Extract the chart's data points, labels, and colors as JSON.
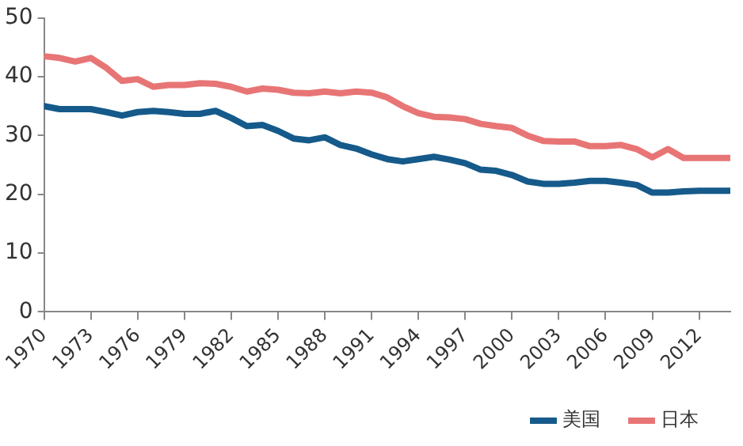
{
  "chart_data": {
    "type": "line",
    "x": [
      1970,
      1971,
      1972,
      1973,
      1974,
      1975,
      1976,
      1977,
      1978,
      1979,
      1980,
      1981,
      1982,
      1983,
      1984,
      1985,
      1986,
      1987,
      1988,
      1989,
      1990,
      1991,
      1992,
      1993,
      1994,
      1995,
      1996,
      1997,
      1998,
      1999,
      2000,
      2001,
      2002,
      2003,
      2004,
      2005,
      2006,
      2007,
      2008,
      2009,
      2010,
      2011,
      2012,
      2013,
      2014
    ],
    "series": [
      {
        "name": "美国",
        "color": "#155a8a",
        "values": [
          35,
          34.5,
          34.5,
          34.5,
          34,
          33.4,
          34,
          34.2,
          34,
          33.7,
          33.7,
          34.2,
          33,
          31.6,
          31.8,
          30.8,
          29.5,
          29.2,
          29.7,
          28.4,
          27.8,
          26.8,
          26,
          25.6,
          26,
          26.4,
          25.9,
          25.3,
          24.2,
          24,
          23.3,
          22.2,
          21.8,
          21.8,
          22,
          22.3,
          22.3,
          22,
          21.6,
          20.3,
          20.3,
          20.5,
          20.6,
          20.6,
          20.6
        ]
      },
      {
        "name": "日本",
        "color": "#e87575",
        "values": [
          43.5,
          43.2,
          42.6,
          43.2,
          41.5,
          39.3,
          39.6,
          38.3,
          38.6,
          38.6,
          38.9,
          38.8,
          38.3,
          37.5,
          38,
          37.8,
          37.3,
          37.2,
          37.5,
          37.2,
          37.5,
          37.3,
          36.5,
          35,
          33.8,
          33.2,
          33.1,
          32.8,
          32,
          31.6,
          31.3,
          30,
          29.1,
          29,
          29,
          28.2,
          28.2,
          28.4,
          27.7,
          26.3,
          27.7,
          26.2,
          26.2,
          26.2,
          26.2
        ]
      }
    ],
    "xlim": [
      1970,
      2014
    ],
    "xticks": [
      1970,
      1973,
      1976,
      1979,
      1982,
      1985,
      1988,
      1991,
      1994,
      1997,
      2000,
      2003,
      2006,
      2009,
      2012
    ],
    "ylim": [
      0,
      50
    ],
    "yticks": [
      0,
      10,
      20,
      30,
      40,
      50
    ],
    "grid": false,
    "legend": "bottom",
    "marker": "none",
    "line_style": "solid"
  }
}
